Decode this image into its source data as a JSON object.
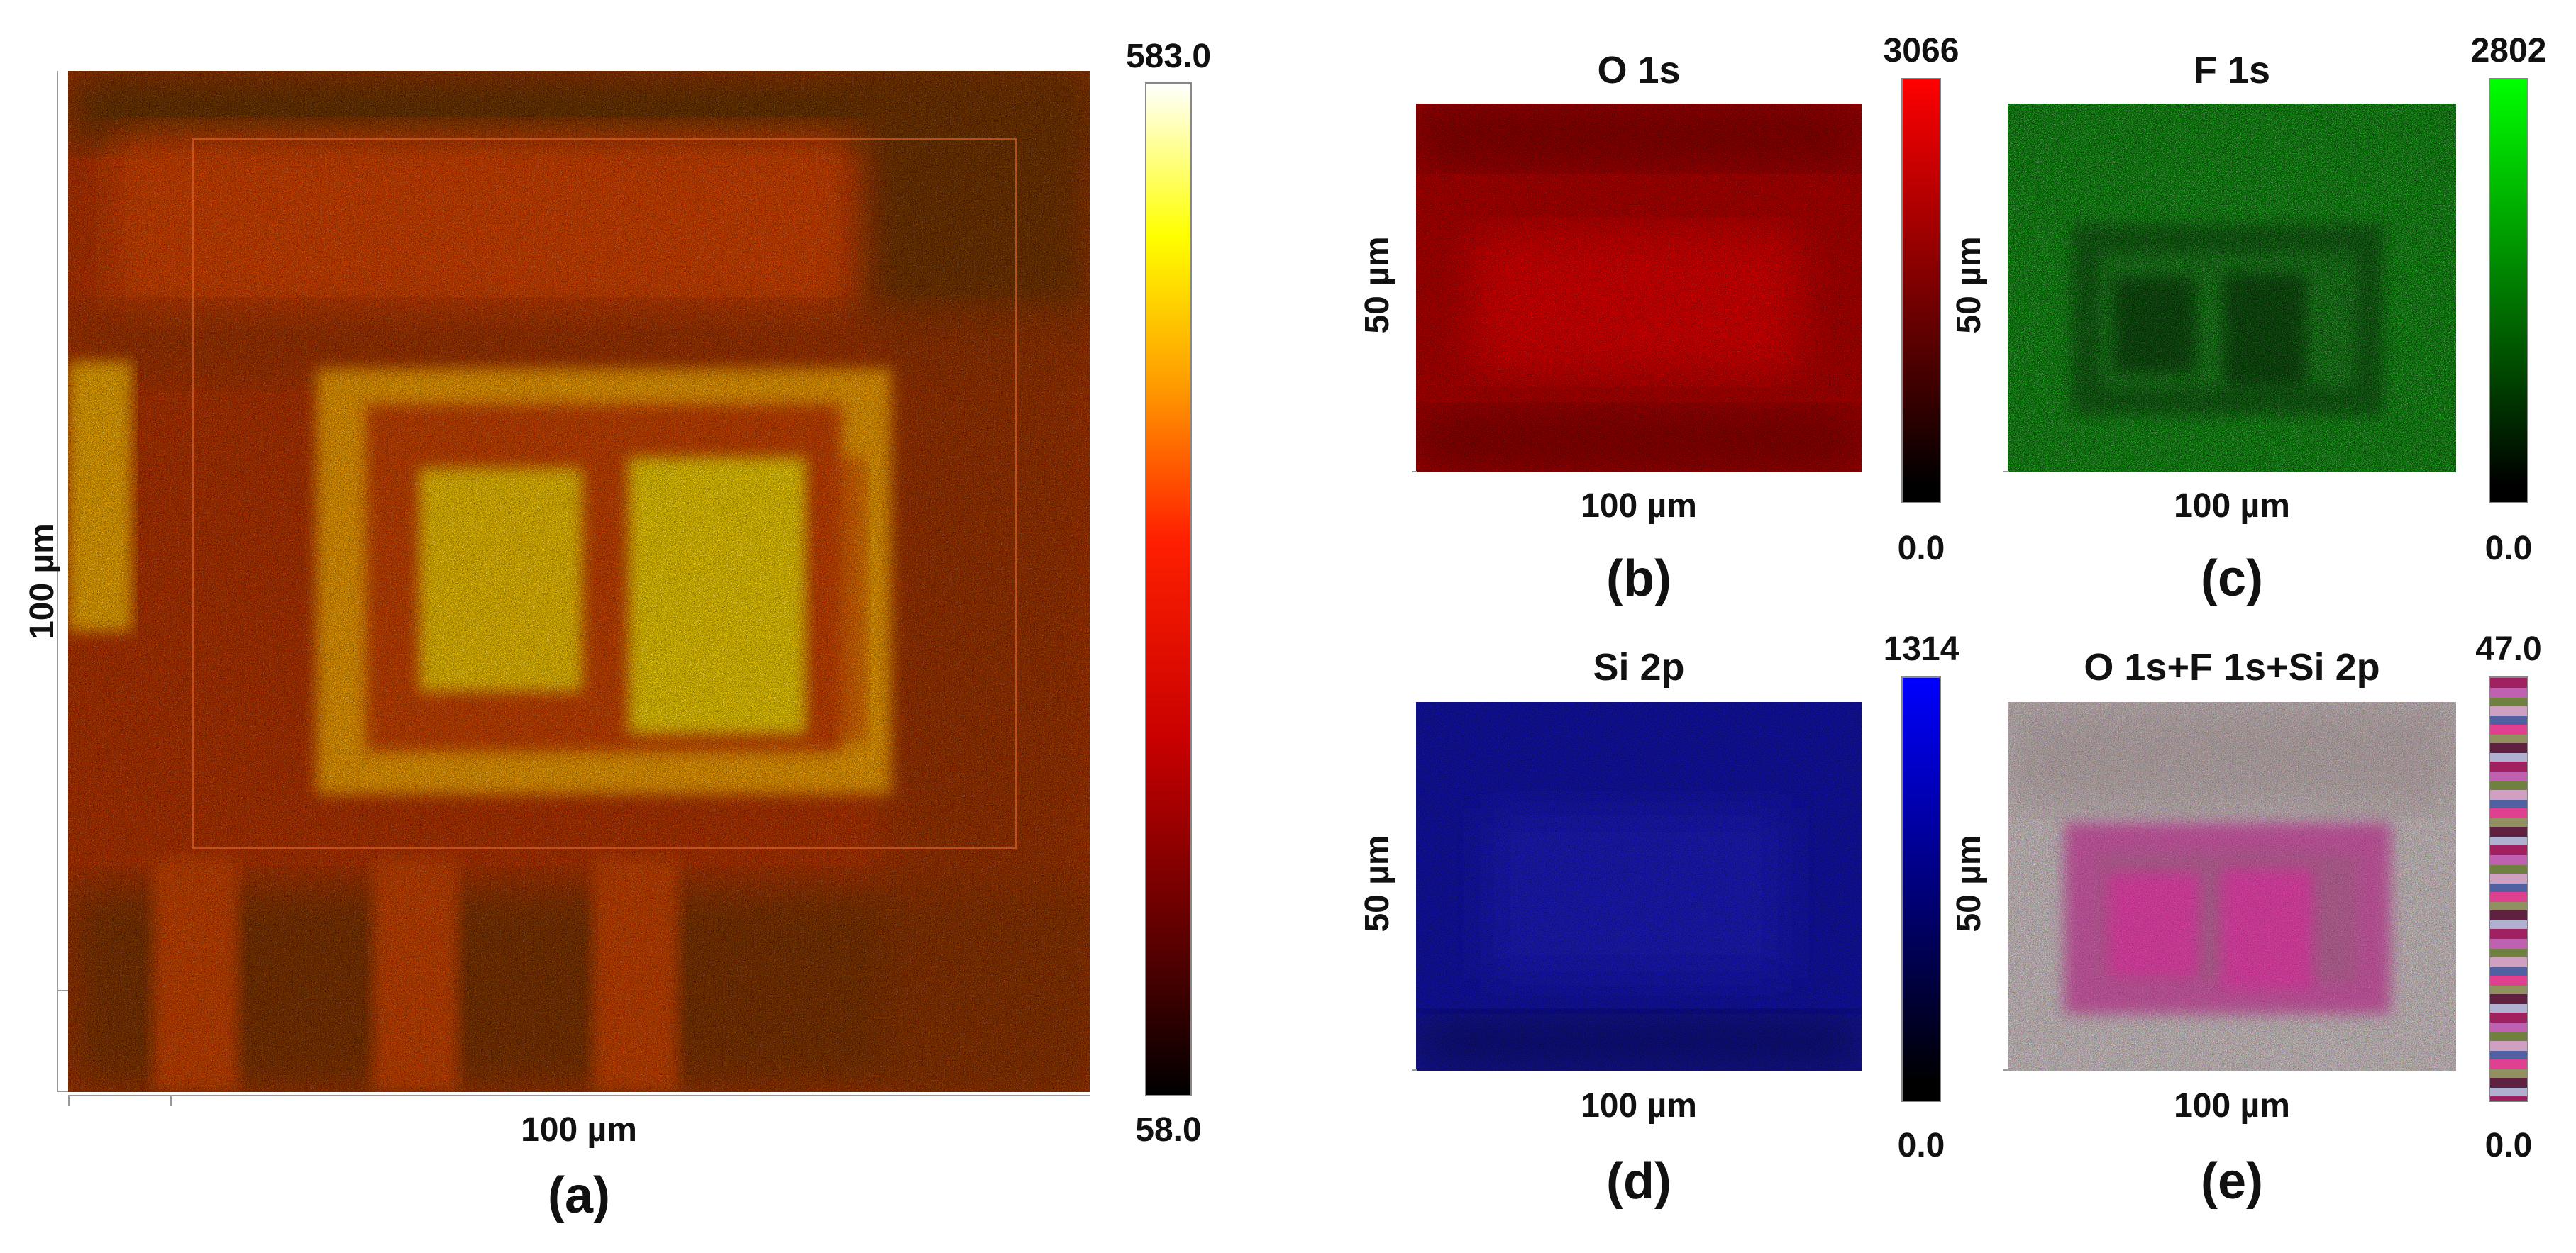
{
  "panels": {
    "a": {
      "label": "(a)",
      "xlabel": "100 µm",
      "ylabel": "100 µm",
      "cbar_max": "583.0",
      "cbar_min": "58.0",
      "cmap_colors": [
        "#000000",
        "#5a0000",
        "#c80000",
        "#ff2a00",
        "#ff9a00",
        "#ffff00",
        "#ffffff"
      ]
    },
    "b": {
      "label": "(b)",
      "title": "O 1s",
      "xlabel": "100 µm",
      "ylabel": "50 µm",
      "cbar_max": "3066",
      "cbar_min": "0.0",
      "cmap_colors": [
        "#000000",
        "#ff0000"
      ]
    },
    "c": {
      "label": "(c)",
      "title": "F 1s",
      "xlabel": "100 µm",
      "ylabel": "50 µm",
      "cbar_max": "2802",
      "cbar_min": "0.0",
      "cmap_colors": [
        "#000000",
        "#00ff00"
      ]
    },
    "d": {
      "label": "(d)",
      "title": "Si 2p",
      "xlabel": "100 µm",
      "ylabel": "50 µm",
      "cbar_max": "1314",
      "cbar_min": "0.0",
      "cmap_colors": [
        "#000000",
        "#0000ff"
      ]
    },
    "e": {
      "label": "(e)",
      "title": "O 1s+F 1s+Si 2p",
      "xlabel": "100 µm",
      "ylabel": "50 µm",
      "cbar_max": "47.0",
      "cbar_min": "0.0"
    }
  }
}
